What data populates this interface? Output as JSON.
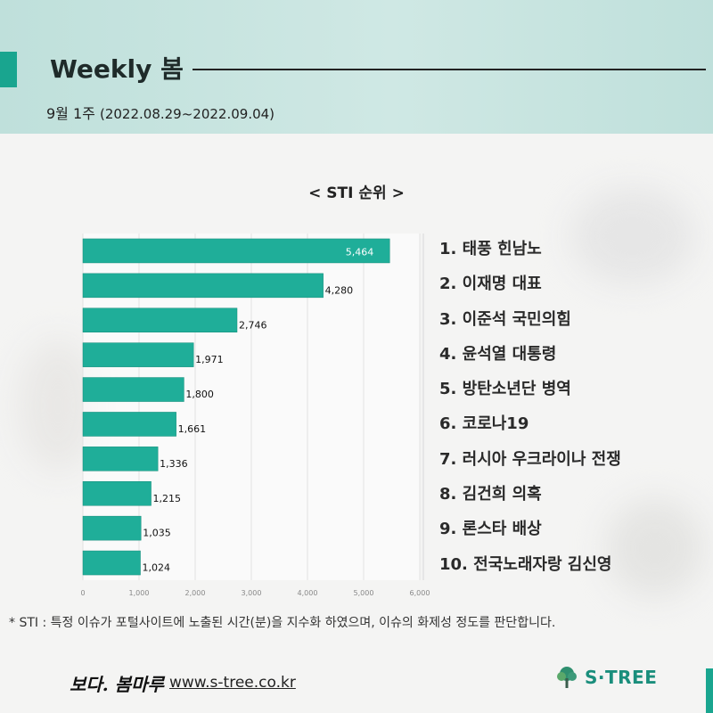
{
  "header": {
    "title": "Weekly 봄",
    "week": "9월 1주",
    "date_range": "(2022.08.29~2022.09.04)"
  },
  "chart_data": {
    "type": "bar",
    "orientation": "horizontal",
    "title": "< STI 순위 >",
    "categories": [
      "1. 태풍 힌남노",
      "2. 이재명 대표",
      "3. 이준석 국민의힘",
      "4. 윤석열 대통령",
      "5. 방탄소년단 병역",
      "6. 코로나19",
      "7. 러시아 우크라이나 전쟁",
      "8. 김건희 의혹",
      "9. 론스타 배상",
      "10. 전국노래자랑 김신영"
    ],
    "values": [
      5464,
      4280,
      2746,
      1971,
      1800,
      1661,
      1336,
      1215,
      1035,
      1024
    ],
    "value_labels": [
      "5,464",
      "4,280",
      "2,746",
      "1,971",
      "1,800",
      "1,661",
      "1,336",
      "1,215",
      "1,035",
      "1,024"
    ],
    "xlim": [
      0,
      6000
    ],
    "x_ticks": [
      0,
      1000,
      2000,
      3000,
      4000,
      5000,
      6000
    ],
    "x_tick_labels": [
      "0",
      "1,000",
      "2,000",
      "3,000",
      "4,000",
      "5,000",
      "6,000"
    ],
    "bar_color": "#1fae99",
    "grid": true
  },
  "footnote": "* STI : 특정 이슈가 포털사이트에 노출된 시간(분)을 지수화 하였으며, 이슈의 화제성 정도를 판단합니다.",
  "footer": {
    "brand": "보다. 봄마루",
    "website": "www.s-tree.co.kr",
    "logo_text": "S·TREE"
  },
  "colors": {
    "accent": "#19a58f",
    "header_bg": "#c6e4df"
  }
}
